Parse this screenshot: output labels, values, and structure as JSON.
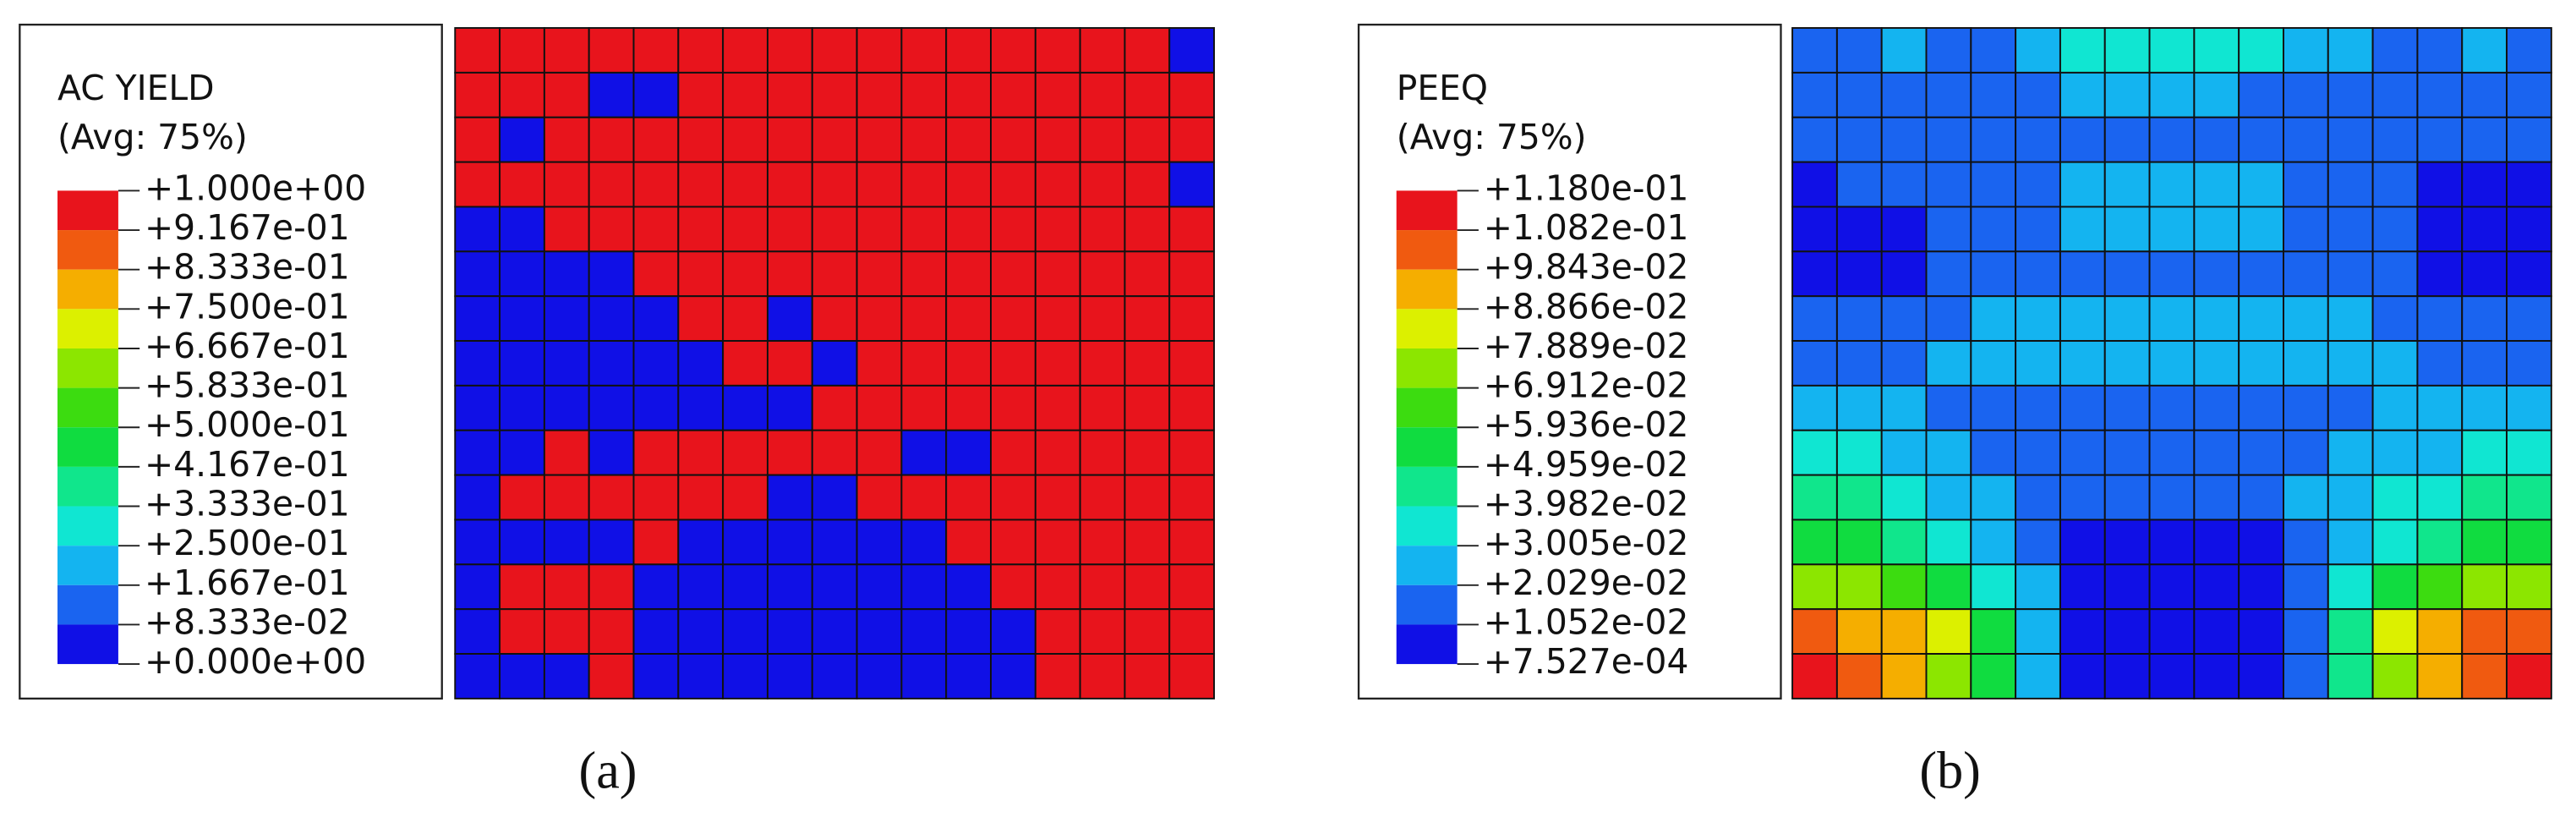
{
  "panels": [
    {
      "legend": {
        "title": "AC YIELD",
        "subtitle": "(Avg: 75%)",
        "ticks": [
          {
            "value": 1.0,
            "label": "+1.000e+00"
          },
          {
            "value": 0.9167,
            "label": "+9.167e-01"
          },
          {
            "value": 0.8333,
            "label": "+8.333e-01"
          },
          {
            "value": 0.75,
            "label": "+7.500e-01"
          },
          {
            "value": 0.6667,
            "label": "+6.667e-01"
          },
          {
            "value": 0.5833,
            "label": "+5.833e-01"
          },
          {
            "value": 0.5,
            "label": "+5.000e-01"
          },
          {
            "value": 0.4167,
            "label": "+4.167e-01"
          },
          {
            "value": 0.3333,
            "label": "+3.333e-01"
          },
          {
            "value": 0.25,
            "label": "+2.500e-01"
          },
          {
            "value": 0.1667,
            "label": "+1.667e-01"
          },
          {
            "value": 0.08333,
            "label": "+8.333e-02"
          },
          {
            "value": 0.0,
            "label": "+0.000e+00"
          }
        ],
        "colors": [
          "#e8141c",
          "#f05a10",
          "#f5ae00",
          "#dcf000",
          "#8ce600",
          "#3cdc10",
          "#10dc40",
          "#10e68c",
          "#10e6d2",
          "#14b4f0",
          "#1a64f0",
          "#1010e6"
        ]
      },
      "cells": [
        [
          1,
          1,
          1,
          1,
          1,
          1,
          1,
          1,
          1,
          1,
          1,
          1,
          1,
          1,
          1,
          1,
          0
        ],
        [
          1,
          1,
          1,
          0,
          0,
          1,
          1,
          1,
          1,
          1,
          1,
          1,
          1,
          1,
          1,
          1,
          1
        ],
        [
          1,
          0,
          1,
          1,
          1,
          1,
          1,
          1,
          1,
          1,
          1,
          1,
          1,
          1,
          1,
          1,
          1
        ],
        [
          1,
          1,
          1,
          1,
          1,
          1,
          1,
          1,
          1,
          1,
          1,
          1,
          1,
          1,
          1,
          1,
          0
        ],
        [
          0,
          0,
          1,
          1,
          1,
          1,
          1,
          1,
          1,
          1,
          1,
          1,
          1,
          1,
          1,
          1,
          1
        ],
        [
          0,
          0,
          0,
          0,
          1,
          1,
          1,
          1,
          1,
          1,
          1,
          1,
          1,
          1,
          1,
          1,
          1
        ],
        [
          0,
          0,
          0,
          0,
          0,
          1,
          1,
          0,
          1,
          1,
          1,
          1,
          1,
          1,
          1,
          1,
          1
        ],
        [
          0,
          0,
          0,
          0,
          0,
          0,
          1,
          1,
          0,
          1,
          1,
          1,
          1,
          1,
          1,
          1,
          1
        ],
        [
          0,
          0,
          0,
          0,
          0,
          0,
          0,
          0,
          1,
          1,
          1,
          1,
          1,
          1,
          1,
          1,
          1
        ],
        [
          0,
          0,
          1,
          0,
          1,
          1,
          1,
          1,
          1,
          1,
          0,
          0,
          1,
          1,
          1,
          1,
          1
        ],
        [
          0,
          1,
          1,
          1,
          1,
          1,
          1,
          0,
          0,
          1,
          1,
          1,
          1,
          1,
          1,
          1,
          1
        ],
        [
          0,
          0,
          0,
          0,
          1,
          0,
          0,
          0,
          0,
          0,
          0,
          1,
          1,
          1,
          1,
          1,
          1
        ],
        [
          0,
          1,
          1,
          1,
          0,
          0,
          0,
          0,
          0,
          0,
          0,
          0,
          1,
          1,
          1,
          1,
          1
        ],
        [
          0,
          1,
          1,
          1,
          0,
          0,
          0,
          0,
          0,
          0,
          0,
          0,
          0,
          1,
          1,
          1,
          1
        ],
        [
          0,
          0,
          0,
          1,
          0,
          0,
          0,
          0,
          0,
          0,
          0,
          0,
          0,
          1,
          1,
          1,
          1
        ]
      ],
      "caption": "(a)"
    },
    {
      "legend": {
        "title": "PEEQ",
        "subtitle": "(Avg: 75%)",
        "ticks": [
          {
            "value": 0.118,
            "label": "+1.180e-01"
          },
          {
            "value": 0.1082,
            "label": "+1.082e-01"
          },
          {
            "value": 0.09843,
            "label": "+9.843e-02"
          },
          {
            "value": 0.08866,
            "label": "+8.866e-02"
          },
          {
            "value": 0.07889,
            "label": "+7.889e-02"
          },
          {
            "value": 0.06912,
            "label": "+6.912e-02"
          },
          {
            "value": 0.05936,
            "label": "+5.936e-02"
          },
          {
            "value": 0.04959,
            "label": "+4.959e-02"
          },
          {
            "value": 0.03982,
            "label": "+3.982e-02"
          },
          {
            "value": 0.03005,
            "label": "+3.005e-02"
          },
          {
            "value": 0.02029,
            "label": "+2.029e-02"
          },
          {
            "value": 0.01052,
            "label": "+1.052e-02"
          },
          {
            "value": 0.0007527,
            "label": "+7.527e-04"
          }
        ],
        "colors": [
          "#e8141c",
          "#f05a10",
          "#f5ae00",
          "#dcf000",
          "#8ce600",
          "#3cdc10",
          "#10dc40",
          "#10e68c",
          "#10e6d2",
          "#14b4f0",
          "#1a64f0",
          "#1010e6"
        ]
      },
      "cells": [
        [
          0.0154,
          0.0154,
          0.0252,
          0.0154,
          0.0154,
          0.0252,
          0.0349,
          0.0349,
          0.0349,
          0.0349,
          0.0349,
          0.0252,
          0.0252,
          0.0154,
          0.0154,
          0.0252,
          0.0154
        ],
        [
          0.0154,
          0.0154,
          0.0154,
          0.0154,
          0.0154,
          0.0154,
          0.0252,
          0.0252,
          0.0252,
          0.0252,
          0.0154,
          0.0154,
          0.0154,
          0.0154,
          0.0154,
          0.0154,
          0.0154
        ],
        [
          0.0154,
          0.0154,
          0.0154,
          0.0154,
          0.0154,
          0.0154,
          0.0154,
          0.0154,
          0.0154,
          0.0154,
          0.0154,
          0.0154,
          0.0154,
          0.0154,
          0.0154,
          0.0154,
          0.0154
        ],
        [
          0.0056,
          0.0154,
          0.0154,
          0.0154,
          0.0154,
          0.0154,
          0.0252,
          0.0252,
          0.0252,
          0.0252,
          0.0252,
          0.0154,
          0.0154,
          0.0154,
          0.0056,
          0.0056,
          0.0056
        ],
        [
          0.0056,
          0.0056,
          0.0056,
          0.0154,
          0.0154,
          0.0154,
          0.0252,
          0.0252,
          0.0252,
          0.0252,
          0.0252,
          0.0154,
          0.0154,
          0.0154,
          0.0056,
          0.0056,
          0.0056
        ],
        [
          0.0056,
          0.0056,
          0.0056,
          0.0154,
          0.0154,
          0.0154,
          0.0154,
          0.0154,
          0.0154,
          0.0154,
          0.0154,
          0.0154,
          0.0154,
          0.0154,
          0.0056,
          0.0056,
          0.0056
        ],
        [
          0.0154,
          0.0154,
          0.0154,
          0.0154,
          0.0252,
          0.0252,
          0.0252,
          0.0252,
          0.0252,
          0.0252,
          0.0252,
          0.0252,
          0.0252,
          0.0154,
          0.0154,
          0.0154,
          0.0154
        ],
        [
          0.0154,
          0.0154,
          0.0154,
          0.0252,
          0.0252,
          0.0252,
          0.0252,
          0.0252,
          0.0252,
          0.0252,
          0.0252,
          0.0252,
          0.0252,
          0.0252,
          0.0154,
          0.0154,
          0.0154
        ],
        [
          0.0252,
          0.0252,
          0.0252,
          0.0154,
          0.0154,
          0.0154,
          0.0154,
          0.0154,
          0.0154,
          0.0154,
          0.0154,
          0.0154,
          0.0154,
          0.0252,
          0.0252,
          0.0252,
          0.0252
        ],
        [
          0.0349,
          0.0349,
          0.0252,
          0.0252,
          0.0154,
          0.0154,
          0.0154,
          0.0154,
          0.0154,
          0.0154,
          0.0154,
          0.0154,
          0.0252,
          0.0252,
          0.0252,
          0.0349,
          0.0349
        ],
        [
          0.0447,
          0.0447,
          0.0349,
          0.0252,
          0.0252,
          0.0154,
          0.0154,
          0.0154,
          0.0154,
          0.0154,
          0.0154,
          0.0252,
          0.0252,
          0.0349,
          0.0349,
          0.0447,
          0.0447
        ],
        [
          0.0545,
          0.0545,
          0.0447,
          0.0349,
          0.0252,
          0.0154,
          0.0056,
          0.0056,
          0.0056,
          0.0056,
          0.0056,
          0.0154,
          0.0252,
          0.0349,
          0.0447,
          0.0545,
          0.0545
        ],
        [
          0.074,
          0.074,
          0.0642,
          0.0545,
          0.0349,
          0.0252,
          0.0056,
          0.0056,
          0.0056,
          0.0056,
          0.0056,
          0.0154,
          0.0349,
          0.0545,
          0.0642,
          0.074,
          0.074
        ],
        [
          0.1033,
          0.0935,
          0.0935,
          0.0838,
          0.0545,
          0.0252,
          0.0056,
          0.0056,
          0.0056,
          0.0056,
          0.0056,
          0.0154,
          0.0447,
          0.0838,
          0.0935,
          0.1033,
          0.1033
        ],
        [
          0.113,
          0.1033,
          0.0935,
          0.074,
          0.0545,
          0.0252,
          0.0056,
          0.0056,
          0.0056,
          0.0056,
          0.0056,
          0.0154,
          0.0447,
          0.074,
          0.0935,
          0.1033,
          0.113
        ]
      ],
      "caption": "(b)"
    }
  ]
}
